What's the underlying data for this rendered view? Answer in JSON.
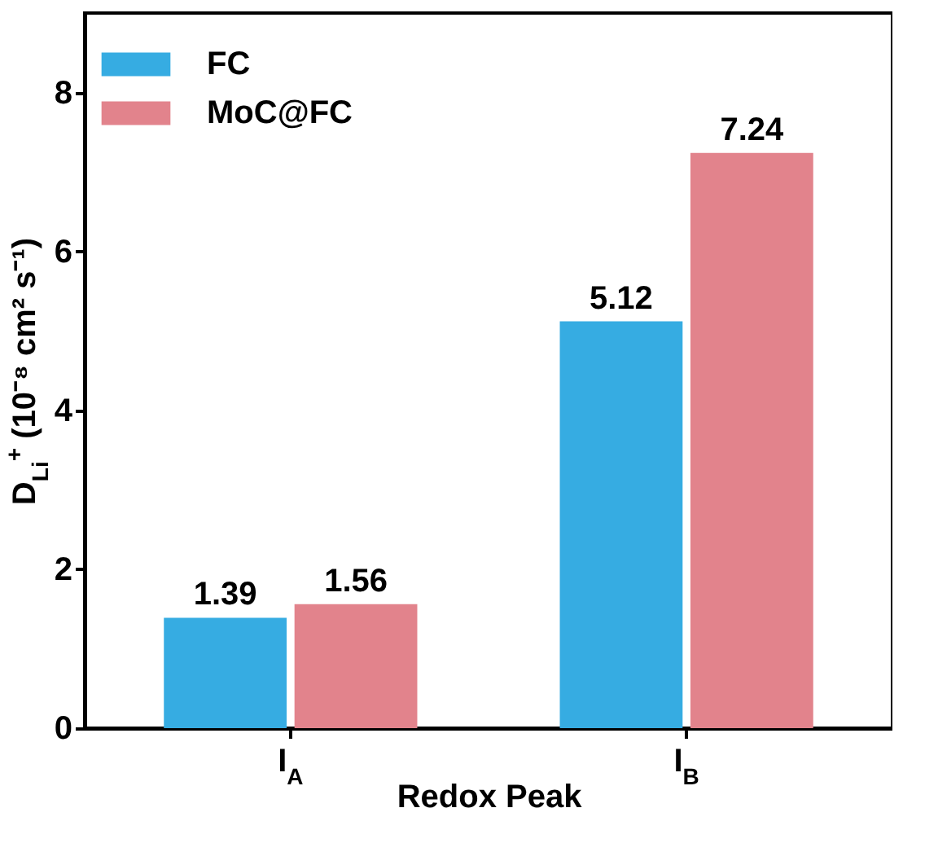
{
  "chart_data": {
    "type": "bar",
    "xlabel": "Redox Peak",
    "ylabel": "D$_{Li}$$^{+}$ (10⁻⁸ cm² s⁻¹)",
    "categories": [
      "I$_{A}$",
      "I$_{B}$"
    ],
    "series": [
      {
        "name": "FC",
        "color": "#36ace2",
        "values": [
          1.39,
          5.12
        ]
      },
      {
        "name": "MoC@FC",
        "color": "#e2838c",
        "values": [
          1.56,
          7.24
        ]
      }
    ],
    "ylim": [
      0,
      9
    ],
    "yticks": [
      0,
      2,
      4,
      6,
      8
    ],
    "data_labels": true,
    "legend": "top left",
    "grid": false
  }
}
